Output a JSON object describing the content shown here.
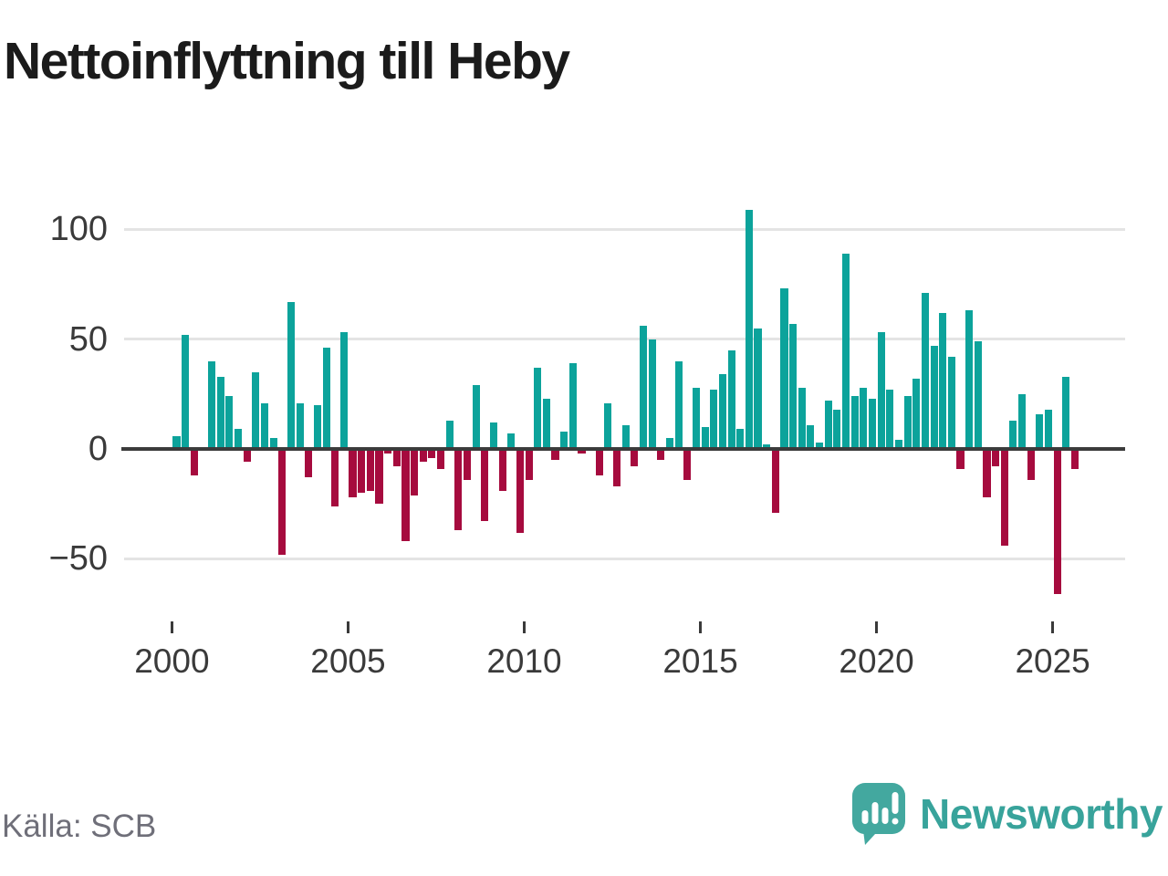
{
  "title": "Nettoinflyttning till Heby",
  "source": "Källa: SCB",
  "branding": {
    "name": "Newsworthy"
  },
  "colors": {
    "positive_bar": "#0ca39b",
    "negative_bar": "#a60b3e",
    "gridline": "#e4e4e4",
    "zero_line": "#3b3b3b",
    "axis_text": "#3a3a3a",
    "title_text": "#1b1b1b",
    "source_text": "#6f6f79",
    "brand_teal": "#38a39b",
    "logo_bubble": "#43a89f"
  },
  "chart_data": {
    "type": "bar",
    "title": "Nettoinflyttning till Heby",
    "frequency": "quarterly",
    "x_start": "2000 Q1",
    "x_end": "2025 Q3",
    "x_axis_ticks": [
      2000,
      2005,
      2010,
      2015,
      2020,
      2025
    ],
    "x_axis_tick_labels": [
      "2000",
      "2005",
      "2010",
      "2015",
      "2020",
      "2025"
    ],
    "y_ticks": [
      100,
      50,
      0,
      -50
    ],
    "y_axis_tick_labels": [
      "100",
      "50",
      "0",
      "−50"
    ],
    "ylim": [
      -75,
      115
    ],
    "grid": "horizontal",
    "legend": "none",
    "values": [
      6,
      52,
      -12,
      0,
      40,
      33,
      24,
      9,
      -6,
      35,
      21,
      5,
      -48,
      67,
      21,
      -13,
      20,
      46,
      -26,
      53,
      -22,
      -20,
      -19,
      -25,
      -2,
      -8,
      -42,
      -21,
      -6,
      -4,
      -9,
      13,
      -37,
      -14,
      29,
      -33,
      12,
      -19,
      7,
      -38,
      -14,
      37,
      23,
      -5,
      8,
      39,
      -2,
      0,
      -12,
      21,
      -17,
      11,
      -8,
      56,
      50,
      -5,
      5,
      40,
      -14,
      28,
      10,
      27,
      34,
      45,
      9,
      109,
      55,
      2,
      -29,
      73,
      57,
      28,
      11,
      3,
      22,
      18,
      89,
      24,
      28,
      23,
      53,
      27,
      4,
      24,
      32,
      71,
      47,
      62,
      42,
      -9,
      63,
      49,
      -22,
      -8,
      -44,
      13,
      25,
      -14,
      16,
      18,
      -66,
      33,
      -9
    ]
  }
}
